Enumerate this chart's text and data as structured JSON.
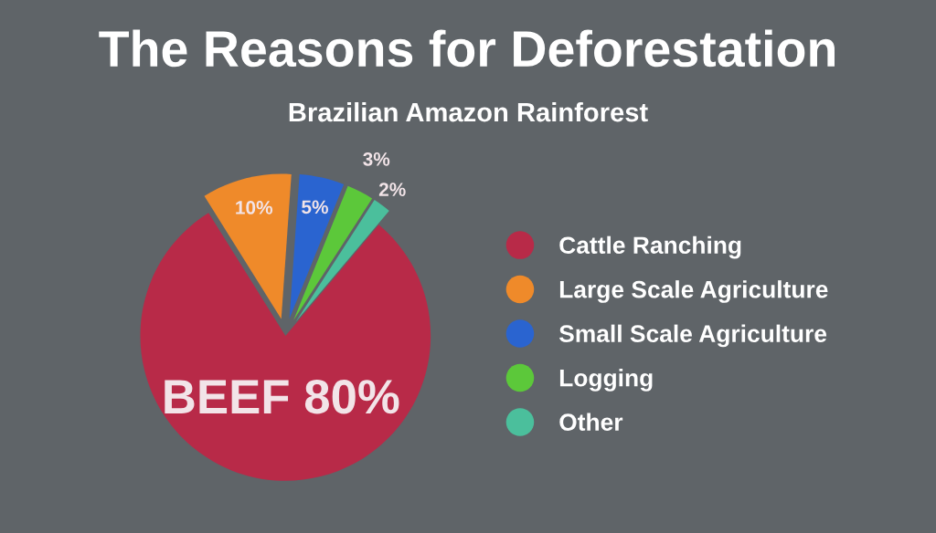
{
  "chart_data": {
    "type": "pie",
    "title": "The Reasons for Deforestation",
    "subtitle": "Brazilian Amazon Rainforest",
    "categories": [
      "Cattle Ranching",
      "Large Scale Agriculture",
      "Small Scale Agriculture",
      "Logging",
      "Other"
    ],
    "values": [
      80,
      10,
      5,
      3,
      2
    ],
    "colors": [
      "#b82a48",
      "#ef8a2a",
      "#2a64d0",
      "#5cc83a",
      "#4bbf9c"
    ],
    "value_labels": [
      "BEEF 80%",
      "10%",
      "5%",
      "3%",
      "2%"
    ],
    "legend": "right"
  }
}
